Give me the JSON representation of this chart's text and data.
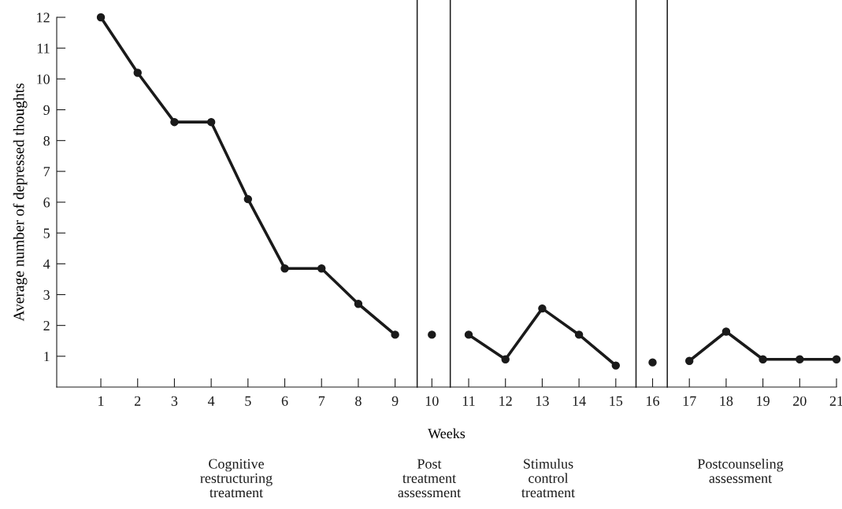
{
  "chart_data": {
    "type": "line",
    "xlabel": "Weeks",
    "ylabel": "Average number of depressed thoughts",
    "series": [
      {
        "color": "#1a1a1a",
        "x": [
          1,
          2,
          3,
          4,
          5,
          6,
          7,
          8,
          9
        ],
        "values": [
          12,
          10.2,
          8.6,
          8.6,
          6.1,
          3.85,
          3.85,
          2.7,
          1.7
        ]
      },
      {
        "color": "#1a1a1a",
        "x": [
          10
        ],
        "values": [
          1.7
        ]
      },
      {
        "color": "#1a1a1a",
        "x": [
          11,
          12,
          13,
          14,
          15
        ],
        "values": [
          1.7,
          0.9,
          2.55,
          1.7,
          0.7
        ]
      },
      {
        "color": "#1a1a1a",
        "x": [
          16
        ],
        "values": [
          0.8
        ]
      },
      {
        "color": "#1a1a1a",
        "x": [
          17,
          18,
          19,
          20,
          21
        ],
        "values": [
          0.85,
          1.8,
          0.9,
          0.9,
          0.9
        ]
      }
    ],
    "xlim": [
      -0.2,
      21
    ],
    "xticks": [
      1,
      2,
      3,
      4,
      5,
      6,
      7,
      8,
      9,
      10,
      11,
      12,
      13,
      14,
      15,
      16,
      17,
      18,
      19,
      20,
      21
    ],
    "ylim": [
      0,
      12
    ],
    "yticks": [
      1,
      2,
      3,
      4,
      5,
      6,
      7,
      8,
      9,
      10,
      11,
      12
    ],
    "ref_lines": [
      {
        "axis": "x",
        "value": 9.6,
        "color": "#1a1a1a"
      },
      {
        "axis": "x",
        "value": 10.5,
        "color": "#1a1a1a"
      },
      {
        "axis": "x",
        "value": 15.55,
        "color": "#1a1a1a"
      },
      {
        "axis": "x",
        "value": 16.4,
        "color": "#1a1a1a"
      }
    ],
    "annotations": [
      "Cognitive\nrestructuring\ntreatment",
      "Post\ntreatment\nassessment",
      "Stimulus\ncontrol\ntreatment",
      "Postcounseling\nassessment"
    ],
    "grid": false,
    "legend": false,
    "marker": "circle",
    "line_style": "solid"
  }
}
